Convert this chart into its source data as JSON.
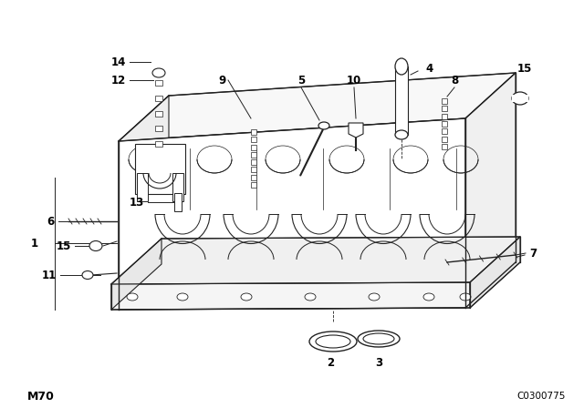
{
  "bg_color": "#ffffff",
  "lc": "#222222",
  "model_code": "M70",
  "diagram_code": "C0300775",
  "fig_w": 6.4,
  "fig_h": 4.48,
  "dpi": 100
}
